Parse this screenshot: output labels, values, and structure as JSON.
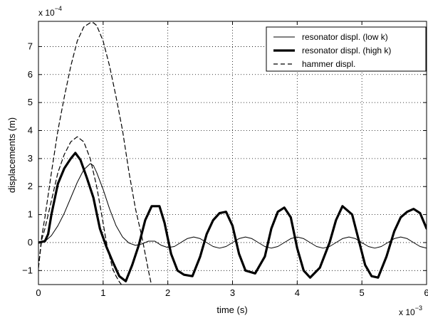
{
  "chart_data": {
    "type": "line",
    "title": "",
    "xlabel": "time (s)",
    "ylabel": "displacements (m)",
    "x_exponent_label": "x 10",
    "x_exponent": "−3",
    "y_exponent_label": "x 10",
    "y_exponent": "−4",
    "xlim": [
      0,
      6
    ],
    "ylim": [
      -1.5,
      7.9
    ],
    "x_scale_factor": 0.001,
    "y_scale_factor": 0.0001,
    "xticks": [
      0,
      1,
      2,
      3,
      4,
      5,
      6
    ],
    "yticks": [
      -1,
      0,
      1,
      2,
      3,
      4,
      5,
      6,
      7
    ],
    "grid": true,
    "legend_position": "top-right",
    "series": [
      {
        "name": "resonator displ. (low k)",
        "style": "thin-solid",
        "x": [
          0,
          0.1,
          0.2,
          0.3,
          0.4,
          0.5,
          0.6,
          0.7,
          0.8,
          0.85,
          0.9,
          1.0,
          1.1,
          1.2,
          1.3,
          1.4,
          1.5,
          1.6,
          1.7,
          1.8,
          1.9,
          2.0,
          2.1,
          2.2,
          2.3,
          2.4,
          2.5,
          2.6,
          2.7,
          2.8,
          2.9,
          3.0,
          3.1,
          3.2,
          3.3,
          3.4,
          3.5,
          3.6,
          3.7,
          3.8,
          3.9,
          4.0,
          4.1,
          4.2,
          4.3,
          4.4,
          4.5,
          4.6,
          4.7,
          4.8,
          4.9,
          5.0,
          5.1,
          5.2,
          5.3,
          5.4,
          5.5,
          5.6,
          5.7,
          5.8,
          5.9,
          6.0
        ],
        "y": [
          0,
          0.04,
          0.25,
          0.6,
          1.05,
          1.6,
          2.15,
          2.6,
          2.82,
          2.75,
          2.5,
          1.9,
          1.2,
          0.6,
          0.2,
          -0.02,
          -0.1,
          -0.05,
          0.05,
          0.05,
          -0.1,
          -0.18,
          -0.14,
          0.0,
          0.14,
          0.2,
          0.14,
          0.0,
          -0.14,
          -0.2,
          -0.14,
          0.0,
          0.14,
          0.2,
          0.14,
          0.0,
          -0.14,
          -0.2,
          -0.14,
          0.0,
          0.14,
          0.2,
          0.14,
          0.0,
          -0.14,
          -0.2,
          -0.14,
          0.0,
          0.14,
          0.2,
          0.14,
          0.0,
          -0.14,
          -0.2,
          -0.14,
          0.0,
          0.14,
          0.2,
          0.14,
          0.0,
          -0.14,
          -0.2
        ]
      },
      {
        "name": "resonator displ. (high k)",
        "style": "thick-solid",
        "x": [
          0,
          0.1,
          0.15,
          0.2,
          0.3,
          0.4,
          0.5,
          0.57,
          0.65,
          0.75,
          0.85,
          0.95,
          1.05,
          1.15,
          1.25,
          1.35,
          1.45,
          1.55,
          1.65,
          1.75,
          1.87,
          1.95,
          2.05,
          2.15,
          2.25,
          2.38,
          2.5,
          2.6,
          2.7,
          2.8,
          2.9,
          3.0,
          3.1,
          3.2,
          3.35,
          3.5,
          3.6,
          3.7,
          3.8,
          3.9,
          4.0,
          4.1,
          4.2,
          4.35,
          4.5,
          4.6,
          4.7,
          4.85,
          4.95,
          5.05,
          5.15,
          5.25,
          5.38,
          5.5,
          5.6,
          5.7,
          5.8,
          5.9,
          6.0
        ],
        "y": [
          0,
          0.05,
          0.3,
          1.0,
          2.1,
          2.65,
          3.0,
          3.2,
          2.95,
          2.3,
          1.6,
          0.5,
          -0.15,
          -0.7,
          -1.2,
          -1.38,
          -0.8,
          -0.1,
          0.8,
          1.3,
          1.3,
          0.7,
          -0.4,
          -1.0,
          -1.15,
          -1.2,
          -0.5,
          0.3,
          0.8,
          1.05,
          1.1,
          0.6,
          -0.4,
          -1.0,
          -1.1,
          -0.5,
          0.5,
          1.1,
          1.25,
          0.9,
          -0.2,
          -1.0,
          -1.25,
          -0.9,
          0.0,
          0.8,
          1.3,
          1.0,
          0.1,
          -0.8,
          -1.2,
          -1.25,
          -0.5,
          0.4,
          0.9,
          1.1,
          1.2,
          1.05,
          0.5
        ]
      },
      {
        "name": "hammer displ.",
        "style": "dashed",
        "x": [
          0,
          0.05,
          0.1,
          0.2,
          0.3,
          0.4,
          0.5,
          0.6,
          0.7,
          0.8,
          0.9,
          1.0,
          1.05,
          1.1,
          1.15,
          1.2,
          1.25,
          1.3
        ],
        "y": [
          -0.9,
          0.1,
          0.5,
          1.5,
          2.5,
          3.15,
          3.6,
          3.78,
          3.6,
          3.0,
          2.0,
          0.7,
          0.0,
          -0.5,
          -0.95,
          -1.2,
          -1.4,
          -1.55
        ]
      },
      {
        "name": "",
        "style": "dashed",
        "x": [
          0,
          0.05,
          0.1,
          0.2,
          0.3,
          0.4,
          0.5,
          0.6,
          0.7,
          0.8,
          0.85,
          0.9,
          1.0,
          1.1,
          1.2,
          1.3,
          1.4,
          1.5,
          1.6,
          1.7,
          1.75
        ],
        "y": [
          -0.9,
          0.2,
          0.9,
          2.5,
          4.0,
          5.2,
          6.3,
          7.2,
          7.7,
          7.85,
          7.85,
          7.75,
          7.2,
          6.3,
          5.2,
          4.0,
          2.5,
          1.2,
          0.2,
          -1.0,
          -1.55
        ]
      }
    ]
  }
}
